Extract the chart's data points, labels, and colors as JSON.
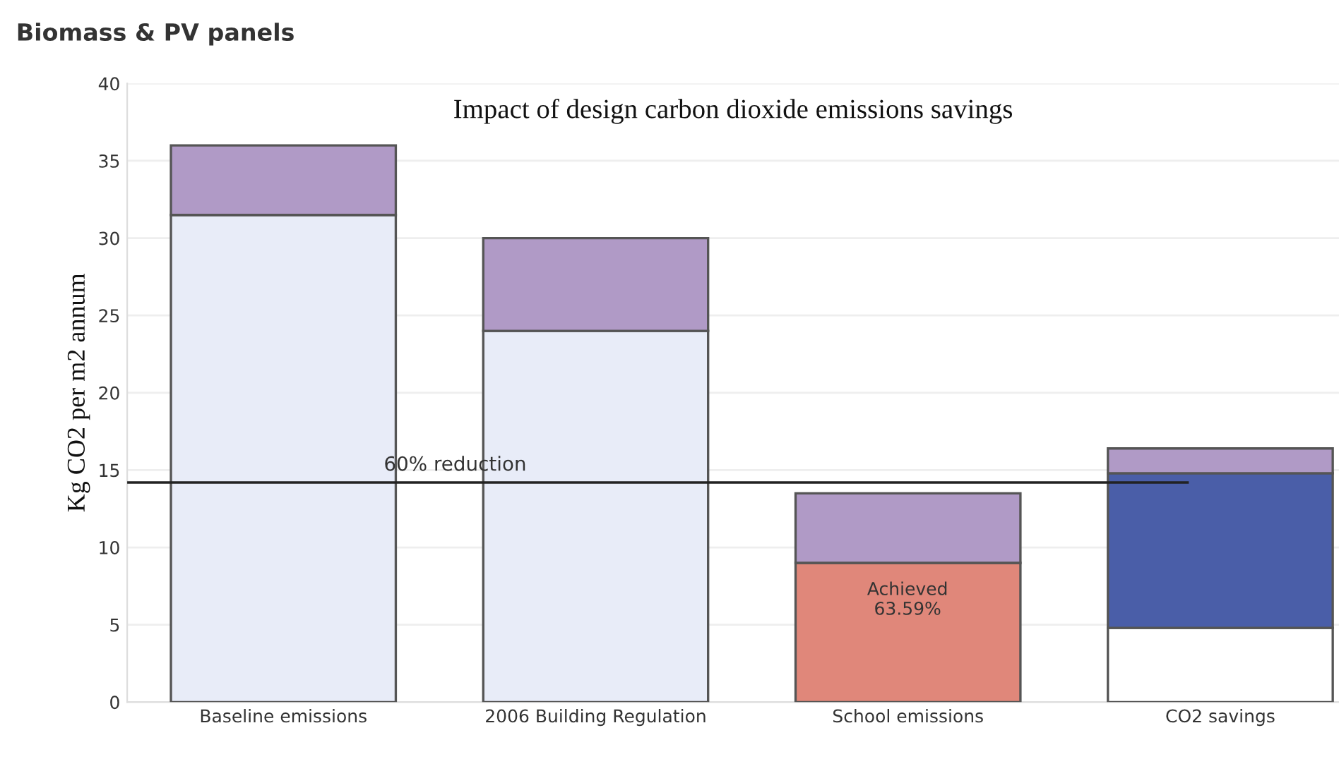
{
  "chart_data": {
    "type": "bar",
    "title": "Biomass & PV panels",
    "subtitle": "Impact of design carbon dioxide emissions savings",
    "ylabel": "Kg CO2 per m2 annum",
    "categories": [
      "Baseline emissions",
      "2006 Building Regulation",
      "School emissions",
      "CO2 savings"
    ],
    "stacked": true,
    "series": [
      {
        "colors": [
          "#e8ecf8",
          "#e8ecf8",
          "#e0877a",
          "#ffffff"
        ],
        "values": [
          31.5,
          24,
          9,
          4.8
        ]
      },
      {
        "color": "#4a5ea8",
        "values": [
          null,
          null,
          null,
          10
        ]
      },
      {
        "color": "#b09ac6",
        "values": [
          4.5,
          6,
          4.5,
          1.6
        ]
      }
    ],
    "ylim": [
      0,
      40
    ],
    "yticks": [
      0,
      5,
      10,
      15,
      20,
      25,
      30,
      35,
      40
    ],
    "grid": "y",
    "ref_lines": [
      {
        "axis": "y",
        "value": 14.2,
        "label": "60% reduction",
        "color": "#222222"
      }
    ],
    "annotations": [
      "Achieved\n63.59%"
    ]
  }
}
